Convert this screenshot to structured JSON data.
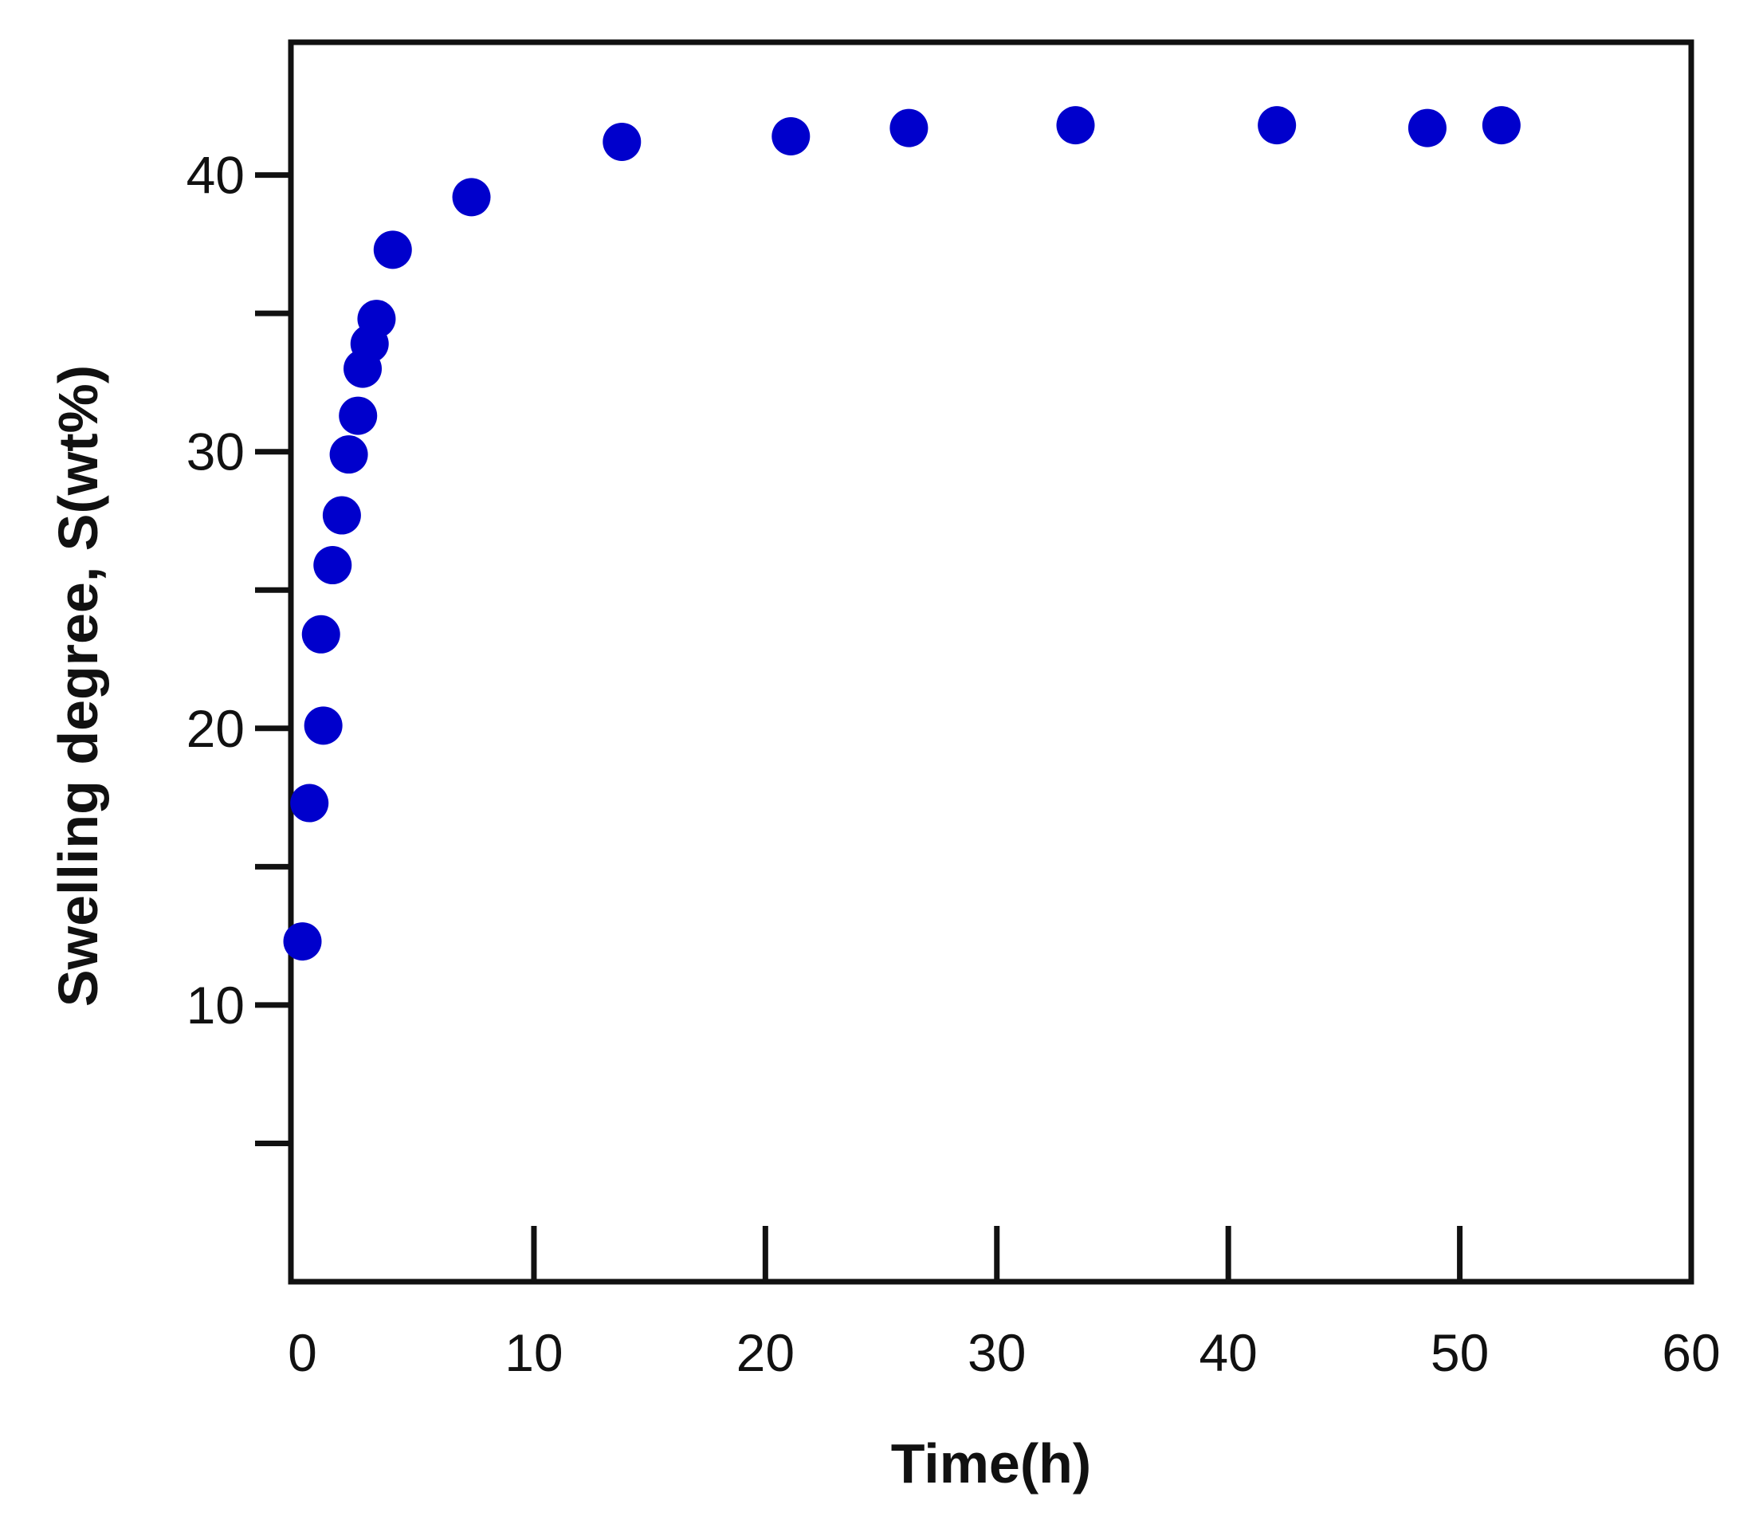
{
  "chart_data": {
    "type": "scatter",
    "title": "",
    "xlabel": "Time(h)",
    "ylabel": "Swelling degree, S(wt%)",
    "xlim": [
      -0.5,
      60
    ],
    "ylim": [
      0,
      44.8
    ],
    "x_ticks": [
      0,
      10,
      20,
      30,
      40,
      50,
      60
    ],
    "x_tick_labels": [
      "0",
      "10",
      "20",
      "30",
      "40",
      "50",
      "60"
    ],
    "y_major_ticks": [
      10,
      20,
      30,
      40
    ],
    "y_tick_labels": [
      "10",
      "20",
      "30",
      "40"
    ],
    "y_minor_ticks": [
      5,
      15,
      25,
      35
    ],
    "grid": false,
    "legend": "none",
    "marker_color": "#0000cc",
    "series": [
      {
        "x": [
          0.0,
          0.3,
          0.9,
          0.8,
          1.3,
          1.7,
          2.0,
          2.4,
          2.6,
          2.9,
          3.2,
          3.9,
          7.3,
          13.8,
          21.1,
          26.2,
          33.4,
          42.1,
          48.6,
          51.8
        ],
        "y": [
          12.3,
          17.3,
          20.1,
          23.4,
          25.9,
          27.7,
          29.9,
          31.3,
          33.0,
          33.9,
          34.8,
          37.3,
          39.2,
          41.2,
          41.4,
          41.7,
          41.8,
          41.8,
          41.7,
          41.8
        ]
      }
    ]
  }
}
